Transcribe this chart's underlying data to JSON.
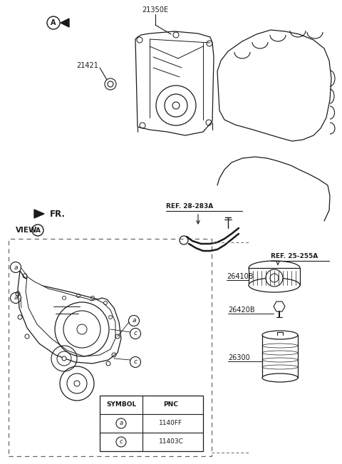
{
  "bg_color": "#ffffff",
  "lc": "#1a1a1a",
  "figsize": [
    4.8,
    6.51
  ],
  "dpi": 100,
  "labels": {
    "21350E": "21350E",
    "21421": "21421",
    "26410B": "26410B",
    "26420B": "26420B",
    "26300": "26300",
    "ref_28283A": "REF. 28-283A",
    "ref_25255A": "REF. 25-255A",
    "fr": "FR.",
    "view": "VIEW",
    "A": "A",
    "symbol": "SYMBOL",
    "pnc": "PNC",
    "pnc_a": "1140FF",
    "pnc_c": "11403C",
    "sym_a": "a",
    "sym_c": "c"
  }
}
